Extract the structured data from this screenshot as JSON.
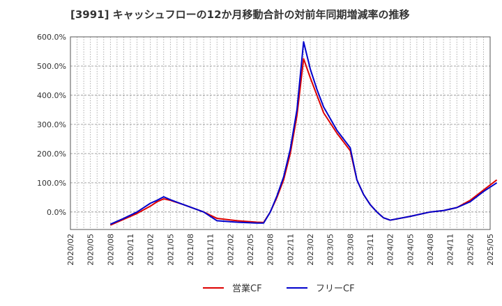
{
  "chart_data": {
    "type": "line",
    "title": "[3991]  キャッシュフローの12か月移動合計の対前年同期増減率の推移",
    "xlabel": "",
    "ylabel": "",
    "ylim": [
      -60,
      600
    ],
    "yticks": [
      0,
      100,
      200,
      300,
      400,
      500,
      600
    ],
    "ytick_labels": [
      "0.0%",
      "100.0%",
      "200.0%",
      "300.0%",
      "400.0%",
      "500.0%",
      "600.0%"
    ],
    "xtick_labels": [
      "2020/02",
      "2020/05",
      "2020/08",
      "2020/11",
      "2021/02",
      "2021/05",
      "2021/08",
      "2021/11",
      "2022/02",
      "2022/05",
      "2022/08",
      "2022/11",
      "2023/02",
      "2023/05",
      "2023/08",
      "2023/11",
      "2024/02",
      "2024/05",
      "2024/08",
      "2024/11",
      "2025/02",
      "2025/05"
    ],
    "x_start": "2020/02",
    "x_months": 63,
    "grid": true,
    "legend_position": "bottom-center",
    "series": [
      {
        "name": "営業CF",
        "color": "#dd0000",
        "points": [
          [
            6,
            -45
          ],
          [
            8,
            -25
          ],
          [
            10,
            -5
          ],
          [
            12,
            20
          ],
          [
            13,
            35
          ],
          [
            14,
            45
          ],
          [
            15,
            40
          ],
          [
            17,
            25
          ],
          [
            20,
            0
          ],
          [
            22,
            -22
          ],
          [
            25,
            -30
          ],
          [
            28,
            -35
          ],
          [
            29,
            -36
          ],
          [
            30,
            0
          ],
          [
            31,
            50
          ],
          [
            32,
            110
          ],
          [
            33,
            200
          ],
          [
            34,
            330
          ],
          [
            35,
            525
          ],
          [
            36,
            460
          ],
          [
            37,
            400
          ],
          [
            38,
            340
          ],
          [
            40,
            270
          ],
          [
            42,
            210
          ],
          [
            43,
            110
          ],
          [
            44,
            60
          ],
          [
            45,
            25
          ],
          [
            46,
            0
          ],
          [
            47,
            -20
          ],
          [
            48,
            -28
          ],
          [
            51,
            -15
          ],
          [
            54,
            0
          ],
          [
            56,
            5
          ],
          [
            58,
            15
          ],
          [
            60,
            40
          ],
          [
            62,
            75
          ],
          [
            64,
            110
          ]
        ]
      },
      {
        "name": "フリーCF",
        "color": "#0000cc",
        "points": [
          [
            6,
            -42
          ],
          [
            8,
            -22
          ],
          [
            10,
            0
          ],
          [
            12,
            30
          ],
          [
            13,
            40
          ],
          [
            14,
            52
          ],
          [
            15,
            42
          ],
          [
            17,
            25
          ],
          [
            20,
            0
          ],
          [
            22,
            -30
          ],
          [
            25,
            -35
          ],
          [
            28,
            -38
          ],
          [
            29,
            -38
          ],
          [
            30,
            0
          ],
          [
            31,
            55
          ],
          [
            32,
            120
          ],
          [
            33,
            215
          ],
          [
            34,
            350
          ],
          [
            35,
            583
          ],
          [
            36,
            490
          ],
          [
            37,
            420
          ],
          [
            38,
            360
          ],
          [
            40,
            280
          ],
          [
            42,
            220
          ],
          [
            43,
            110
          ],
          [
            44,
            60
          ],
          [
            45,
            25
          ],
          [
            46,
            0
          ],
          [
            47,
            -20
          ],
          [
            48,
            -28
          ],
          [
            51,
            -15
          ],
          [
            54,
            0
          ],
          [
            56,
            5
          ],
          [
            58,
            15
          ],
          [
            60,
            35
          ],
          [
            62,
            70
          ],
          [
            64,
            100
          ]
        ]
      }
    ]
  }
}
